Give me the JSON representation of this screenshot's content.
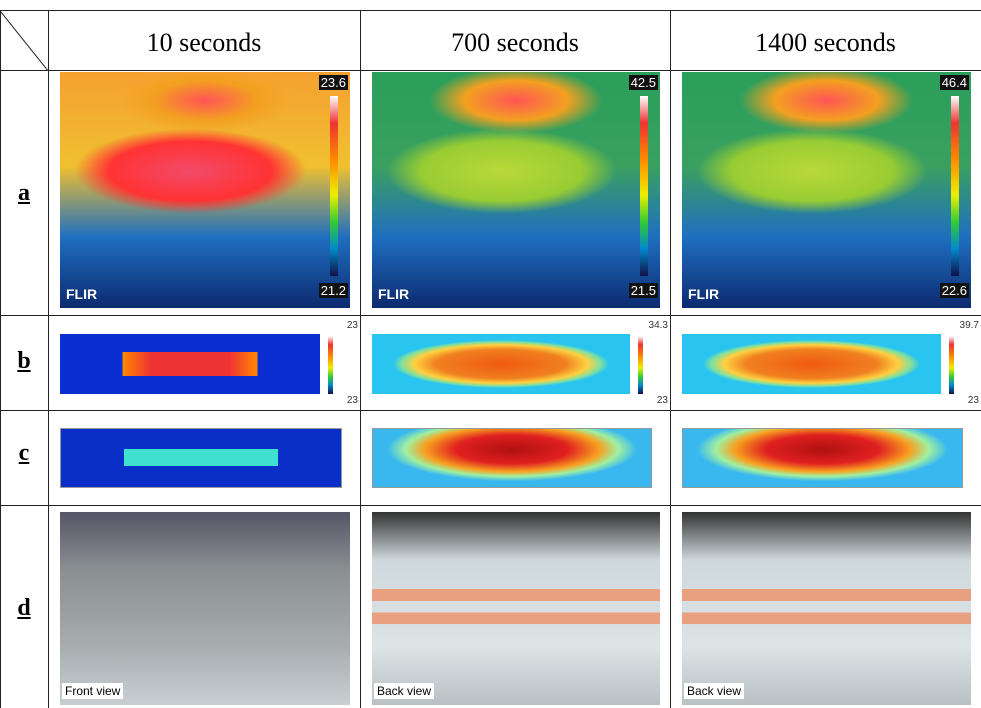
{
  "table": {
    "columns": [
      "10 seconds",
      "700 seconds",
      "1400 seconds"
    ],
    "rows": [
      {
        "label": "a",
        "cells": [
          {
            "max": "23.6",
            "min": "21.2",
            "brand": "FLIR"
          },
          {
            "max": "42.5",
            "min": "21.5",
            "brand": "FLIR"
          },
          {
            "max": "46.4",
            "min": "22.6",
            "brand": "FLIR"
          }
        ]
      },
      {
        "label": "b",
        "cells": [
          {
            "max": "23",
            "min": "23"
          },
          {
            "max": "34.3",
            "min": "23"
          },
          {
            "max": "39.7",
            "min": "23"
          }
        ]
      },
      {
        "label": "c"
      },
      {
        "label": "d",
        "cells": [
          {
            "caption": "Front view"
          },
          {
            "caption": "Back view"
          },
          {
            "caption": "Back view"
          }
        ]
      }
    ]
  }
}
